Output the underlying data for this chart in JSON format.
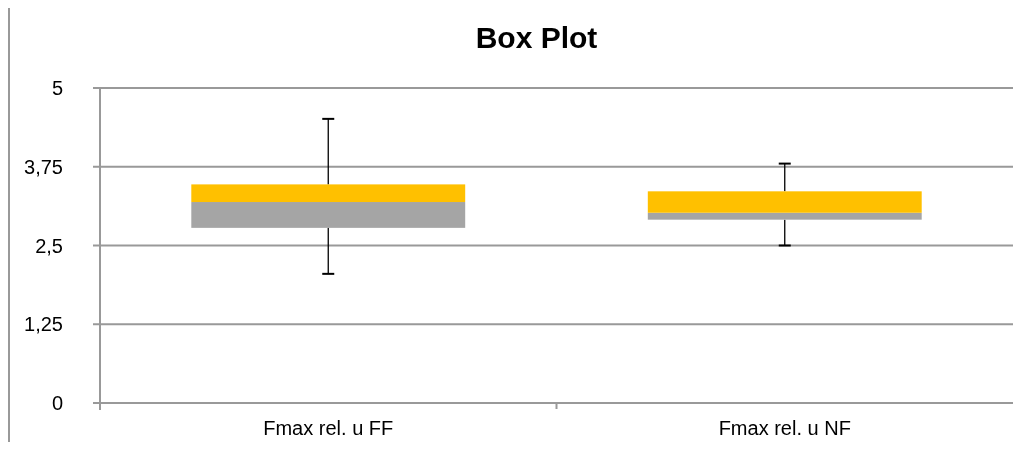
{
  "chart_data": {
    "type": "box",
    "title": "Box Plot",
    "categories": [
      "Fmax rel. u FF",
      "Fmax rel. u NF"
    ],
    "series": [
      {
        "color": "#ffc000",
        "colors": [
          "#a5a5a5",
          "#a5a5a5"
        ],
        "boxes": [
          {
            "low": 2.05,
            "q1": 2.78,
            "median": 3.19,
            "q3": 3.47,
            "high": 4.51
          },
          {
            "low": 2.5,
            "q1": 2.91,
            "median": 3.02,
            "q3": 3.36,
            "high": 3.8
          }
        ]
      }
    ],
    "ylim": [
      0,
      5
    ],
    "yticks": [
      0,
      {
        "value": 1.25,
        "label": "1,25"
      },
      {
        "value": 2.5,
        "label": "2,5"
      },
      {
        "value": 3.75,
        "label": "3,75"
      },
      5
    ],
    "grid": "y"
  }
}
